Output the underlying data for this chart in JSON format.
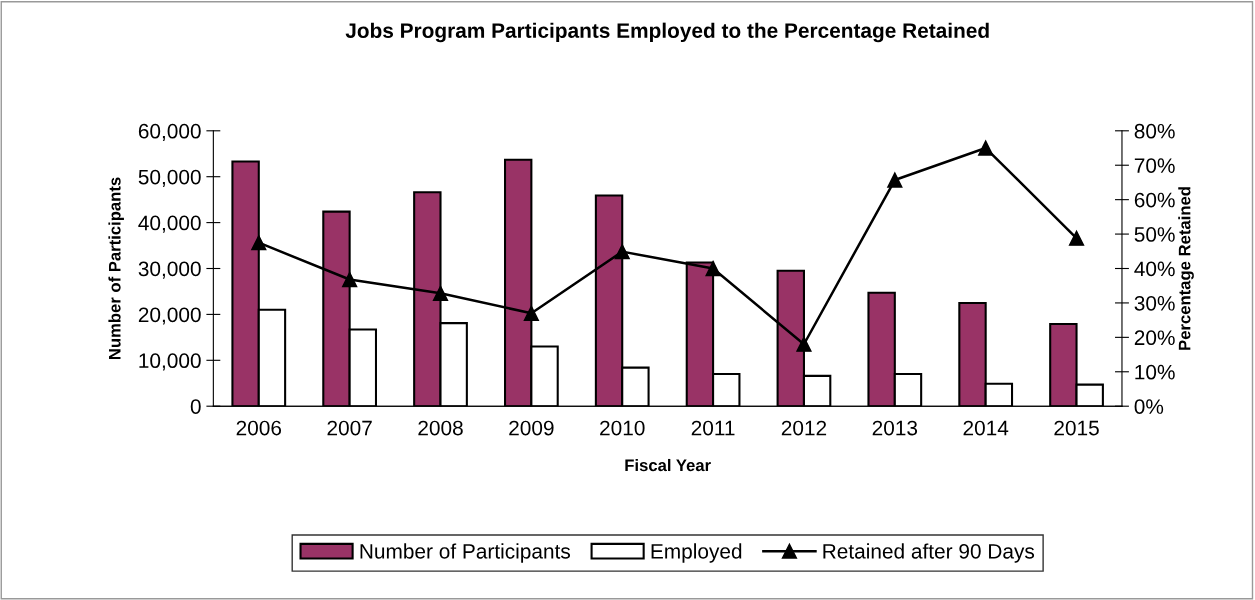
{
  "chart_data": {
    "type": "bar",
    "title": "Jobs Program Participants Employed to the Percentage Retained",
    "xlabel": "Fiscal Year",
    "ylabel": "Number of Participants",
    "y2label": "Percentage Retained",
    "categories": [
      "2006",
      "2007",
      "2008",
      "2009",
      "2010",
      "2011",
      "2012",
      "2013",
      "2014",
      "2015"
    ],
    "series": [
      {
        "name": "Number of Participants",
        "color": "#993366",
        "values": [
          53300,
          42400,
          46600,
          53700,
          45900,
          31300,
          29500,
          24700,
          22500,
          17900
        ]
      },
      {
        "name": "Employed",
        "color": "#ffffff",
        "values": [
          21000,
          16700,
          18100,
          13000,
          8400,
          7000,
          6600,
          7000,
          4900,
          4700
        ]
      },
      {
        "name": "Retained after 90 Days",
        "type": "line",
        "axis": "y2",
        "color": "#000000",
        "marker": "triangle",
        "values": [
          47.5,
          36.8,
          32.8,
          27,
          44.9,
          40,
          18,
          65.7,
          75,
          48.8
        ]
      }
    ],
    "ylim": [
      0,
      60000
    ],
    "yticks": [
      {
        "value": 0,
        "label": "0"
      },
      {
        "value": 10000,
        "label": "10,000"
      },
      {
        "value": 20000,
        "label": "20,000"
      },
      {
        "value": 30000,
        "label": "30,000"
      },
      {
        "value": 40000,
        "label": "40,000"
      },
      {
        "value": 50000,
        "label": "50,000"
      },
      {
        "value": 60000,
        "label": "60,000"
      }
    ],
    "y2lim": [
      0,
      80
    ],
    "y2ticks": [
      {
        "value": 0,
        "label": "0%"
      },
      {
        "value": 10,
        "label": "10%"
      },
      {
        "value": 20,
        "label": "20%"
      },
      {
        "value": 30,
        "label": "30%"
      },
      {
        "value": 40,
        "label": "40%"
      },
      {
        "value": 50,
        "label": "50%"
      },
      {
        "value": 60,
        "label": "60%"
      },
      {
        "value": 70,
        "label": "70%"
      },
      {
        "value": 80,
        "label": "80%"
      }
    ],
    "legend": "bottom",
    "grid": false
  }
}
